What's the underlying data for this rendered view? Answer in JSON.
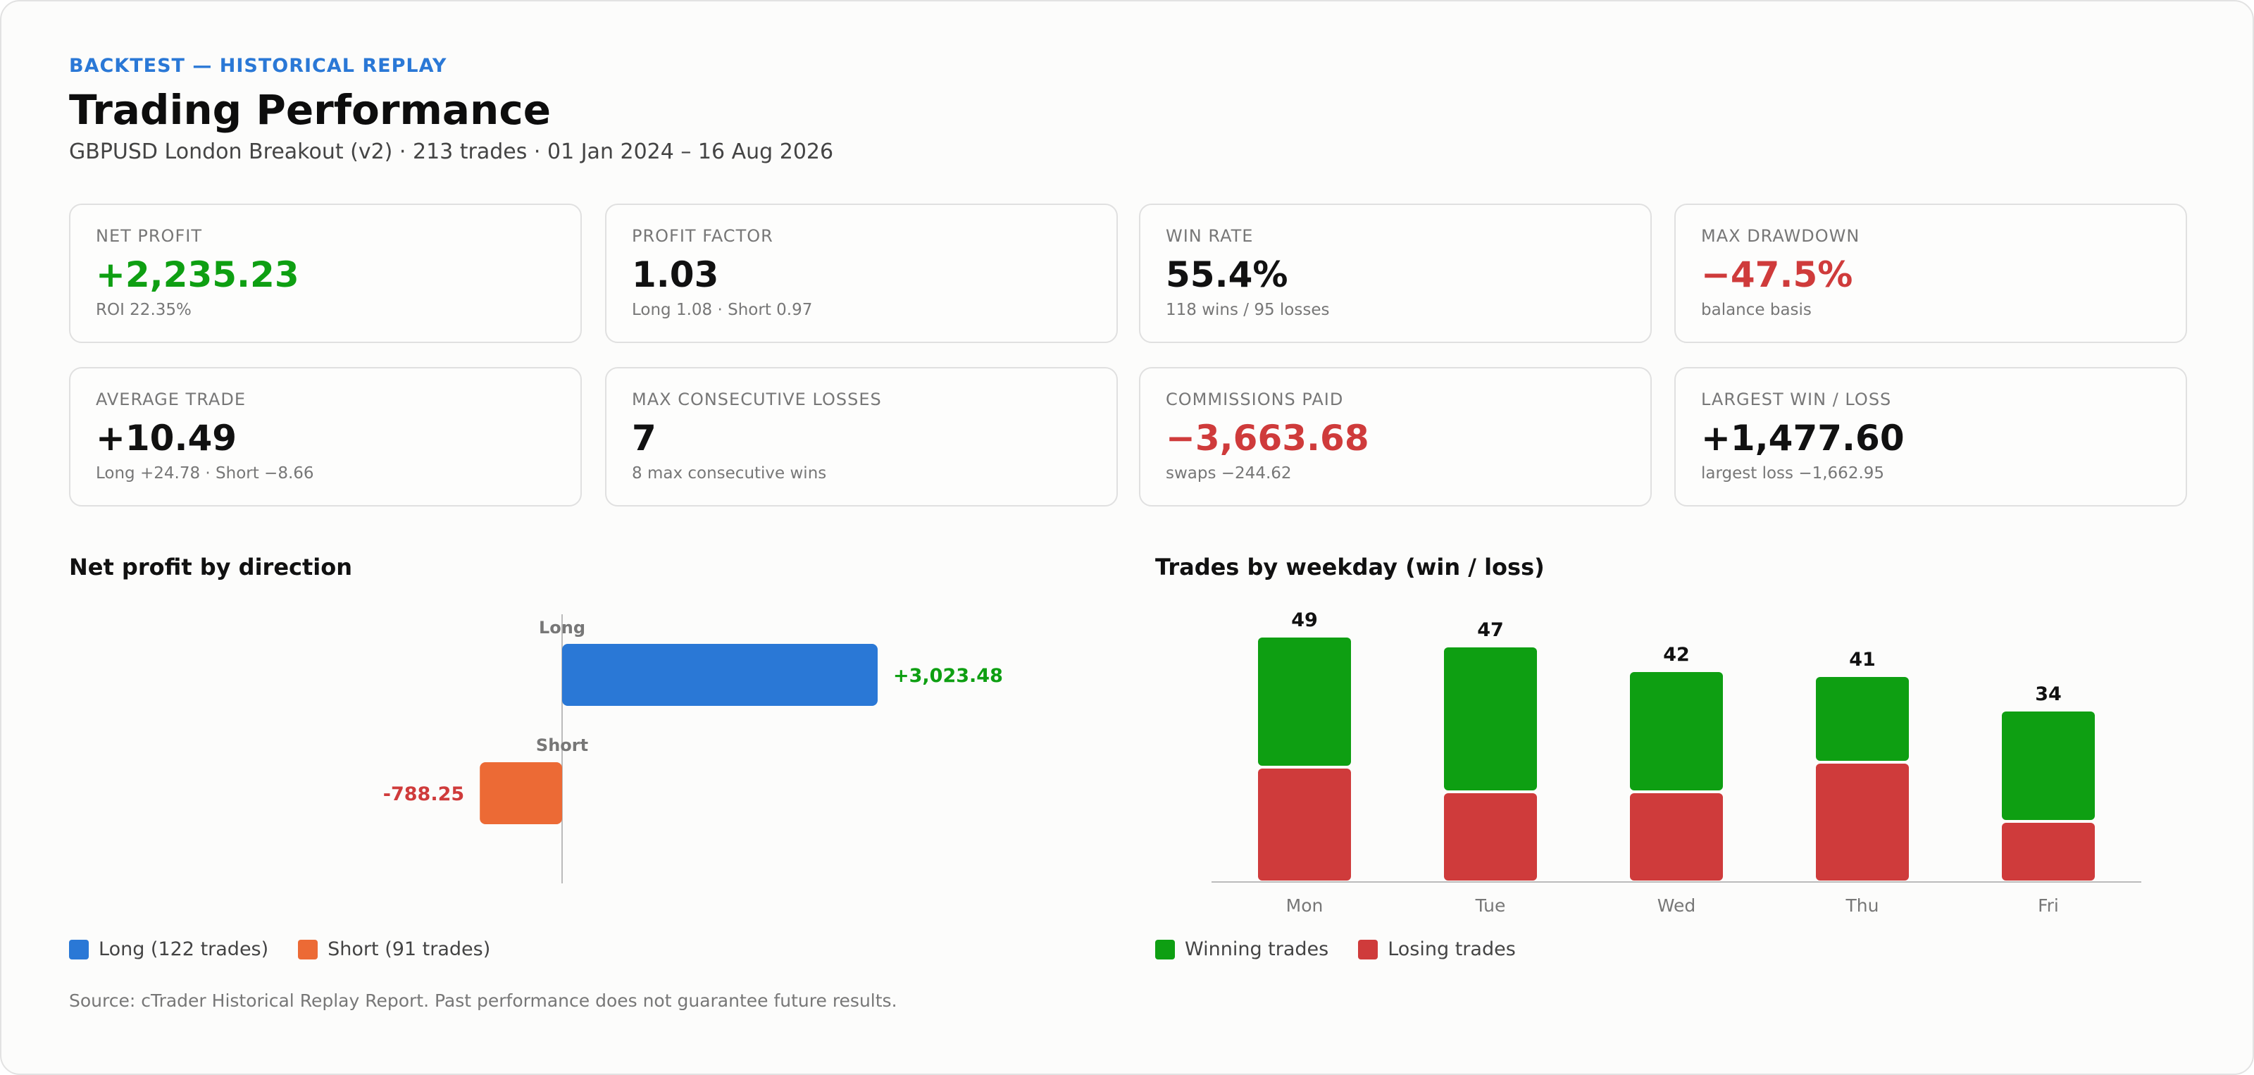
{
  "header": {
    "eyebrow": "BACKTEST — HISTORICAL REPLAY",
    "title": "Trading Performance",
    "subtitle": "GBPUSD London Breakout (v2) · 213 trades · 01 Jan 2024 – 16 Aug 2026"
  },
  "kpis": [
    {
      "label": "NET PROFIT",
      "value": "+2,235.23",
      "sub": "ROI 22.35%",
      "tone": "pos"
    },
    {
      "label": "PROFIT FACTOR",
      "value": "1.03",
      "sub": "Long 1.08 · Short 0.97",
      "tone": ""
    },
    {
      "label": "WIN RATE",
      "value": "55.4%",
      "sub": "118 wins / 95 losses",
      "tone": ""
    },
    {
      "label": "MAX DRAWDOWN",
      "value": "−47.5%",
      "sub": "balance basis",
      "tone": "neg"
    },
    {
      "label": "AVERAGE TRADE",
      "value": "+10.49",
      "sub": "Long +24.78 · Short −8.66",
      "tone": ""
    },
    {
      "label": "MAX CONSECUTIVE LOSSES",
      "value": "7",
      "sub": "8 max consecutive wins",
      "tone": ""
    },
    {
      "label": "COMMISSIONS PAID",
      "value": "−3,663.68",
      "sub": "swaps −244.62",
      "tone": "neg"
    },
    {
      "label": "LARGEST WIN / LOSS",
      "value": "+1,477.60",
      "sub": "largest loss −1,662.95",
      "tone": ""
    }
  ],
  "colors": {
    "long": "#2a78d6",
    "short": "#ec6a35",
    "win": "#0e9f12",
    "loss": "#cf3b3b",
    "pos_text": "#0e9f12",
    "neg_text": "#cf3b3b"
  },
  "direction_chart": {
    "title": "Net profit by direction",
    "legend": [
      "Long (122 trades)",
      "Short (91 trades)"
    ]
  },
  "weekday_chart": {
    "title": "Trades by weekday (win / loss)",
    "legend": [
      "Winning trades",
      "Losing trades"
    ]
  },
  "footer": {
    "source": "Source: cTrader Historical Replay Report. Past performance does not guarantee future results."
  },
  "chart_data": [
    {
      "type": "bar",
      "orientation": "horizontal",
      "title": "Net profit by direction",
      "categories": [
        "Long",
        "Short"
      ],
      "values": [
        3023.48,
        -788.25
      ],
      "value_labels": [
        "+3,023.48",
        "-788.25"
      ],
      "legend": [
        "Long (122 trades)",
        "Short (91 trades)"
      ]
    },
    {
      "type": "bar",
      "stacked": true,
      "title": "Trades by weekday (win / loss)",
      "categories": [
        "Mon",
        "Tue",
        "Wed",
        "Thu",
        "Fri"
      ],
      "series": [
        {
          "name": "Winning trades",
          "values": [
            26,
            29,
            24,
            17,
            22
          ]
        },
        {
          "name": "Losing trades",
          "values": [
            23,
            18,
            18,
            24,
            12
          ]
        }
      ],
      "totals": [
        49,
        47,
        42,
        41,
        34
      ]
    }
  ]
}
